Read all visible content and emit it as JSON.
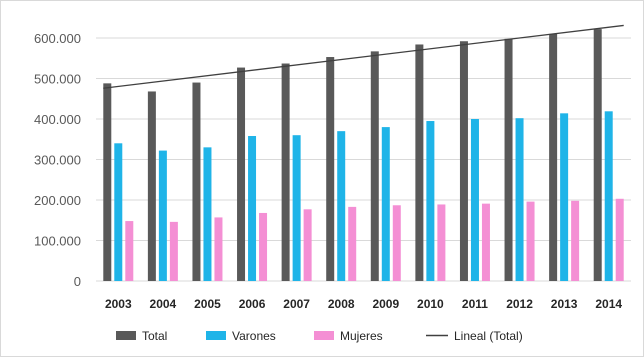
{
  "chart_data": {
    "type": "bar",
    "categories": [
      "2003",
      "2004",
      "2005",
      "2006",
      "2007",
      "2008",
      "2009",
      "2010",
      "2011",
      "2012",
      "2013",
      "2014"
    ],
    "series": [
      {
        "name": "Total",
        "color": "#595959",
        "values": [
          488000,
          468000,
          490000,
          527000,
          537000,
          553000,
          567000,
          584000,
          592000,
          598000,
          610000,
          622000
        ]
      },
      {
        "name": "Varones",
        "color": "#1fb4e8",
        "values": [
          340000,
          322000,
          330000,
          358000,
          360000,
          370000,
          380000,
          395000,
          400000,
          402000,
          414000,
          419000
        ]
      },
      {
        "name": "Mujeres",
        "color": "#f48fd4",
        "values": [
          148000,
          146000,
          157000,
          168000,
          177000,
          183000,
          187000,
          189000,
          191000,
          196000,
          198000,
          203000
        ]
      }
    ],
    "trendline": {
      "name": "Lineal (Total)",
      "type": "linear",
      "of_series": "Total",
      "color": "#404040",
      "start_value": 476000,
      "end_value": 631000
    },
    "yticks": [
      "0",
      "100.000",
      "200.000",
      "300.000",
      "400.000",
      "500.000",
      "600.000"
    ],
    "ylim": [
      0,
      600000
    ],
    "grid": true,
    "legend_position": "bottom",
    "title": "",
    "xlabel": "",
    "ylabel": ""
  }
}
